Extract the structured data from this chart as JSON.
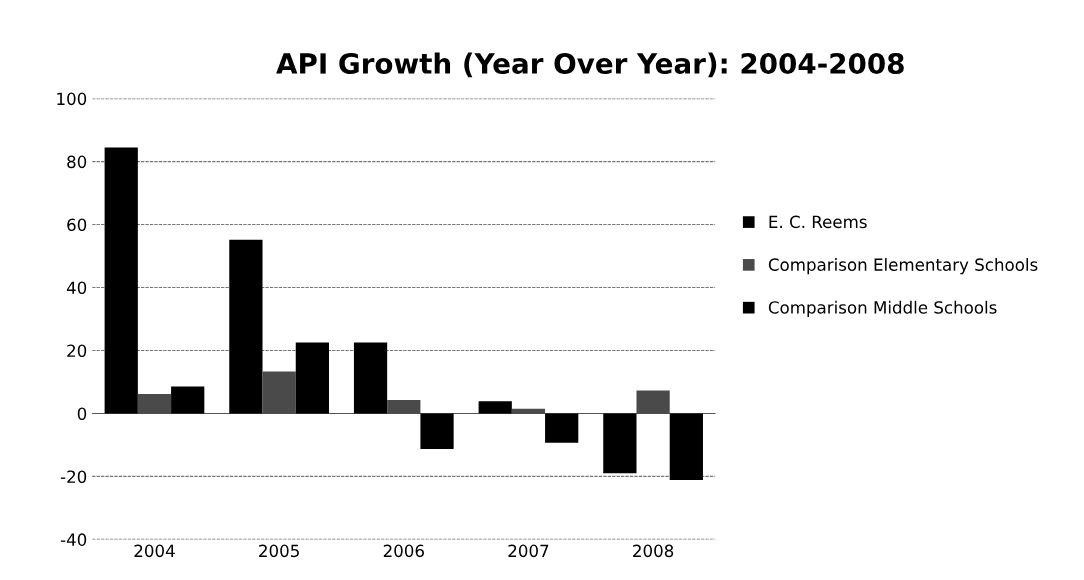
{
  "chart_data": {
    "type": "bar",
    "title": "API Growth (Year Over Year): 2004-2008",
    "categories": [
      "2004",
      "2005",
      "2006",
      "2007",
      "2008"
    ],
    "series": [
      {
        "name": "E. C. Reems",
        "color": "#000000",
        "values": [
          84.5,
          55.2,
          22.5,
          3.9,
          -19
        ]
      },
      {
        "name": "Comparison Elementary Schools",
        "color": "#4a4a4a",
        "values": [
          6.2,
          13.3,
          4.3,
          1.5,
          7.3
        ]
      },
      {
        "name": "Comparison Middle Schools",
        "color": "#000000",
        "values": [
          8.6,
          22.5,
          -11.3,
          -9.3,
          -21.1
        ]
      }
    ],
    "ylim": [
      -40,
      100
    ],
    "yticks": [
      -40,
      -20,
      0,
      20,
      40,
      60,
      80,
      100
    ],
    "grid": "y",
    "legend": "right"
  }
}
